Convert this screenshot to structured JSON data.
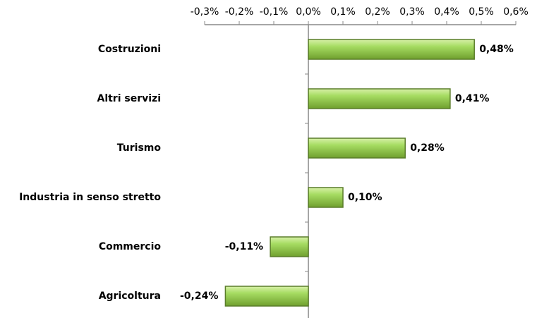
{
  "chart_data": {
    "type": "hbar",
    "categories": [
      "Costruzioni",
      "Altri servizi",
      "Turismo",
      "Industria in senso stretto",
      "Commercio",
      "Agricoltura"
    ],
    "values": [
      0.48,
      0.41,
      0.28,
      0.1,
      -0.11,
      -0.24
    ],
    "value_labels": [
      "0,48%",
      "0,41%",
      "0,28%",
      "0,10%",
      "-0,11%",
      "-0,24%"
    ],
    "color": "#92d050",
    "xlim": [
      -0.3,
      0.6
    ],
    "xticks": [
      {
        "value": -0.3,
        "label": "-0,3%"
      },
      {
        "value": -0.2,
        "label": "-0,2%"
      },
      {
        "value": -0.1,
        "label": "-0,1%"
      },
      {
        "value": 0,
        "label": "0,0%"
      },
      {
        "value": 0.1,
        "label": "0,1%"
      },
      {
        "value": 0.2,
        "label": "0,2%"
      },
      {
        "value": 0.3,
        "label": "0,3%"
      },
      {
        "value": 0.4,
        "label": "0,4%"
      },
      {
        "value": 0.5,
        "label": "0,5%"
      },
      {
        "value": 0.6,
        "label": "0,6%"
      }
    ]
  }
}
